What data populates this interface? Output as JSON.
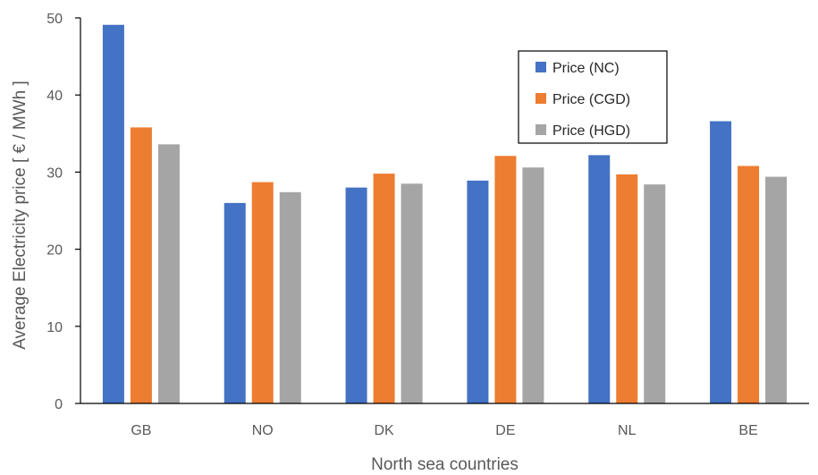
{
  "chart_data": {
    "type": "bar",
    "title": "",
    "xlabel": "North sea countries",
    "ylabel": "Average Electricity price [ € / MWh ]",
    "ylim": [
      0,
      50
    ],
    "yticks": [
      0,
      10,
      20,
      30,
      40,
      50
    ],
    "grid": false,
    "legend_position": "top-right",
    "categories": [
      "GB",
      "NO",
      "DK",
      "DE",
      "NL",
      "BE"
    ],
    "series": [
      {
        "name": "Price (NC)",
        "color": "#4472C4",
        "values": [
          49.1,
          26.0,
          28.0,
          28.9,
          32.2,
          36.6
        ]
      },
      {
        "name": "Price (CGD)",
        "color": "#ED7D31",
        "values": [
          35.8,
          28.7,
          29.8,
          32.1,
          29.7,
          30.8
        ]
      },
      {
        "name": "Price (HGD)",
        "color": "#A5A5A5",
        "values": [
          33.6,
          27.4,
          28.5,
          30.6,
          28.4,
          29.4
        ]
      }
    ]
  }
}
